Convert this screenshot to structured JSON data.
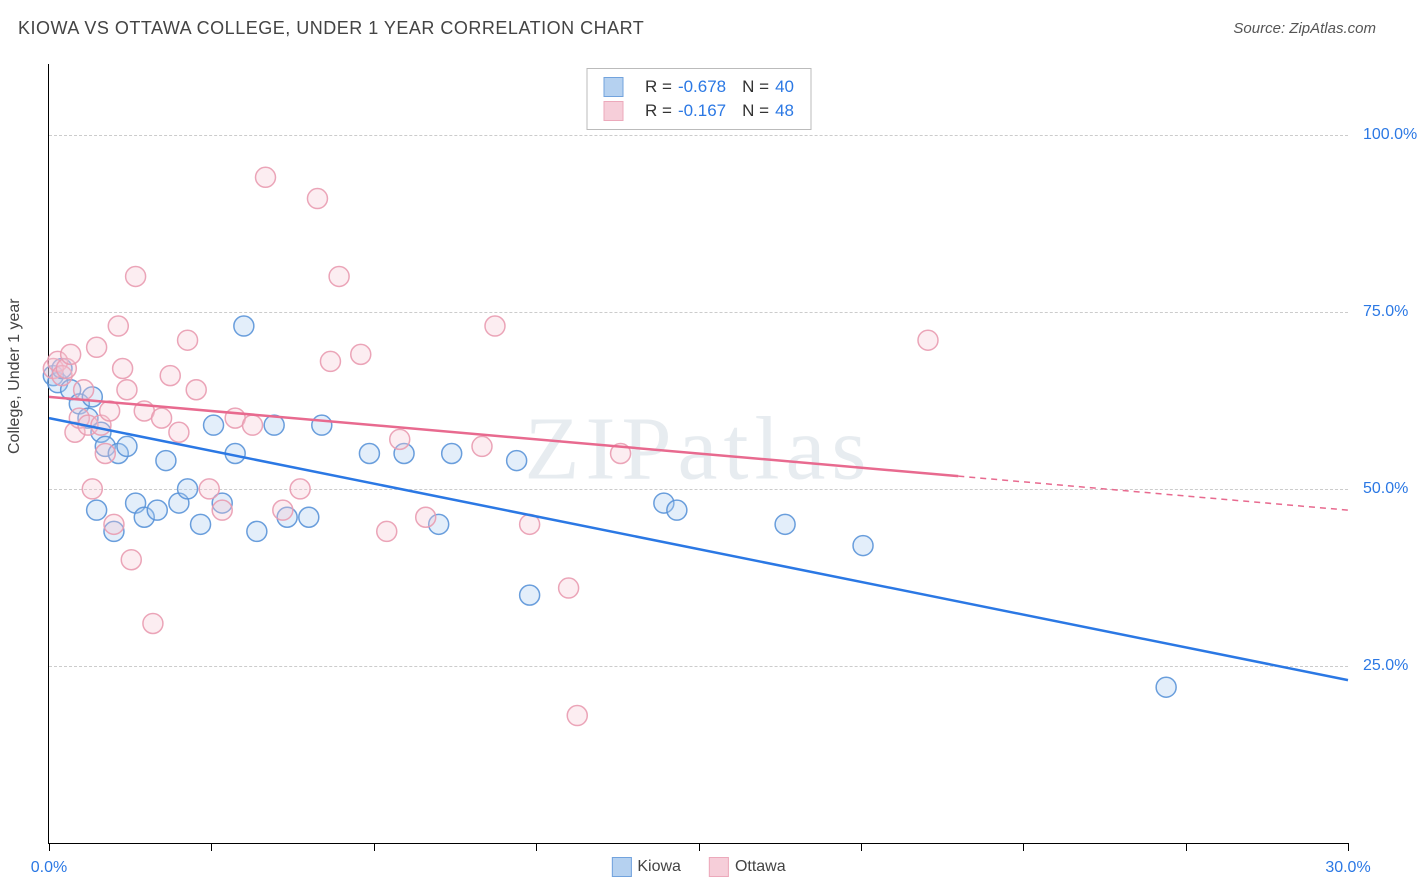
{
  "title": "KIOWA VS OTTAWA COLLEGE, UNDER 1 YEAR CORRELATION CHART",
  "source_prefix": "Source: ",
  "source_name": "ZipAtlas.com",
  "watermark": "ZIPatlas",
  "ylabel": "College, Under 1 year",
  "chart": {
    "type": "scatter-with-regression",
    "background_color": "#ffffff",
    "grid_color": "#cccccc",
    "axis_color": "#000000",
    "tick_label_color": "#2b78e4",
    "label_color": "#444444",
    "title_fontsize": 18,
    "label_fontsize": 16,
    "marker_radius": 10,
    "marker_fill_opacity": 0.32,
    "marker_stroke_opacity": 0.9,
    "line_width": 2.5,
    "xlim": [
      0,
      30
    ],
    "ylim": [
      0,
      110
    ],
    "xtick_positions": [
      0,
      3.75,
      7.5,
      11.25,
      15,
      18.75,
      22.5,
      26.25,
      30
    ],
    "xtick_labels": {
      "0": "0.0%",
      "30": "30.0%"
    },
    "ytick_positions": [
      25,
      50,
      75,
      100
    ],
    "ytick_labels": {
      "25": "25.0%",
      "50": "50.0%",
      "75": "75.0%",
      "100": "100.0%"
    },
    "series": [
      {
        "name": "Kiowa",
        "color_stroke": "#5a93d8",
        "color_fill": "#a9c9ee",
        "line_color": "#2b78e4",
        "R": "-0.678",
        "N": "40",
        "regression": {
          "x1": 0,
          "y1": 60,
          "x2": 30,
          "y2": 23,
          "dash_from_x": null
        },
        "points": [
          [
            0.1,
            66
          ],
          [
            0.2,
            65
          ],
          [
            0.3,
            67
          ],
          [
            0.5,
            64
          ],
          [
            0.7,
            62
          ],
          [
            0.9,
            60
          ],
          [
            1.0,
            63
          ],
          [
            1.1,
            47
          ],
          [
            1.2,
            58
          ],
          [
            1.3,
            56
          ],
          [
            1.5,
            44
          ],
          [
            1.6,
            55
          ],
          [
            1.8,
            56
          ],
          [
            2.0,
            48
          ],
          [
            2.2,
            46
          ],
          [
            2.5,
            47
          ],
          [
            2.7,
            54
          ],
          [
            3.0,
            48
          ],
          [
            3.2,
            50
          ],
          [
            3.5,
            45
          ],
          [
            3.8,
            59
          ],
          [
            4.0,
            48
          ],
          [
            4.3,
            55
          ],
          [
            4.5,
            73
          ],
          [
            4.8,
            44
          ],
          [
            5.2,
            59
          ],
          [
            5.5,
            46
          ],
          [
            6.0,
            46
          ],
          [
            6.3,
            59
          ],
          [
            7.4,
            55
          ],
          [
            8.2,
            55
          ],
          [
            9.0,
            45
          ],
          [
            9.3,
            55
          ],
          [
            10.8,
            54
          ],
          [
            11.1,
            35
          ],
          [
            14.2,
            48
          ],
          [
            14.5,
            47
          ],
          [
            17.0,
            45
          ],
          [
            18.8,
            42
          ],
          [
            25.8,
            22
          ]
        ]
      },
      {
        "name": "Ottawa",
        "color_stroke": "#e99bb0",
        "color_fill": "#f5c6d3",
        "line_color": "#e86a8f",
        "R": "-0.167",
        "N": "48",
        "regression": {
          "x1": 0,
          "y1": 63,
          "x2": 30,
          "y2": 47,
          "dash_from_x": 21
        },
        "points": [
          [
            0.1,
            67
          ],
          [
            0.2,
            68
          ],
          [
            0.3,
            66
          ],
          [
            0.4,
            67
          ],
          [
            0.5,
            69
          ],
          [
            0.6,
            58
          ],
          [
            0.7,
            60
          ],
          [
            0.8,
            64
          ],
          [
            0.9,
            59
          ],
          [
            1.0,
            50
          ],
          [
            1.1,
            70
          ],
          [
            1.2,
            59
          ],
          [
            1.3,
            55
          ],
          [
            1.4,
            61
          ],
          [
            1.5,
            45
          ],
          [
            1.6,
            73
          ],
          [
            1.7,
            67
          ],
          [
            1.8,
            64
          ],
          [
            1.9,
            40
          ],
          [
            2.0,
            80
          ],
          [
            2.2,
            61
          ],
          [
            2.4,
            31
          ],
          [
            2.6,
            60
          ],
          [
            2.8,
            66
          ],
          [
            3.0,
            58
          ],
          [
            3.2,
            71
          ],
          [
            3.4,
            64
          ],
          [
            3.7,
            50
          ],
          [
            4.0,
            47
          ],
          [
            4.3,
            60
          ],
          [
            4.7,
            59
          ],
          [
            5.0,
            94
          ],
          [
            5.4,
            47
          ],
          [
            5.8,
            50
          ],
          [
            6.2,
            91
          ],
          [
            6.5,
            68
          ],
          [
            6.7,
            80
          ],
          [
            7.2,
            69
          ],
          [
            7.8,
            44
          ],
          [
            8.1,
            57
          ],
          [
            8.7,
            46
          ],
          [
            10.0,
            56
          ],
          [
            10.3,
            73
          ],
          [
            11.1,
            45
          ],
          [
            12.0,
            36
          ],
          [
            12.2,
            18
          ],
          [
            13.2,
            55
          ],
          [
            20.3,
            71
          ]
        ]
      }
    ],
    "legend_top": {
      "rows": [
        {
          "swatch_series": 0,
          "R_label": "R =",
          "N_label": "N ="
        },
        {
          "swatch_series": 1,
          "R_label": "R =",
          "N_label": "N ="
        }
      ]
    },
    "legend_bottom_order": [
      0,
      1
    ]
  }
}
